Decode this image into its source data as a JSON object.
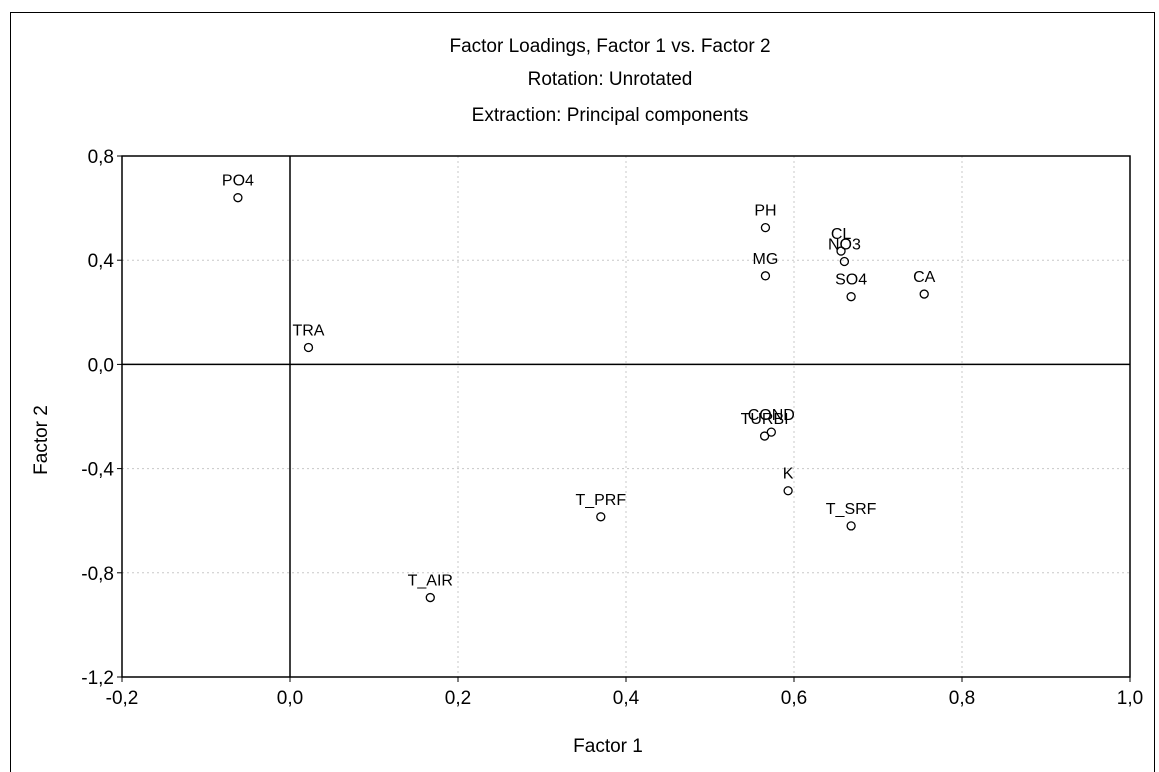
{
  "chart_data": {
    "type": "scatter",
    "title": "Factor Loadings, Factor 1 vs. Factor 2",
    "subtitle_lines": [
      "Rotation: Unrotated",
      "Extraction: Principal components"
    ],
    "xlabel": "Factor 1",
    "ylabel": "Factor 2",
    "xlim": [
      -0.2,
      1.0
    ],
    "ylim": [
      -1.2,
      0.8
    ],
    "xticks": [
      {
        "value": -0.2,
        "label": "-0,2"
      },
      {
        "value": 0.0,
        "label": "0,0"
      },
      {
        "value": 0.2,
        "label": "0,2"
      },
      {
        "value": 0.4,
        "label": "0,4"
      },
      {
        "value": 0.6,
        "label": "0,6"
      },
      {
        "value": 0.8,
        "label": "0,8"
      },
      {
        "value": 1.0,
        "label": "1,0"
      }
    ],
    "yticks": [
      {
        "value": 0.8,
        "label": "0,8"
      },
      {
        "value": 0.4,
        "label": "0,4"
      },
      {
        "value": 0.0,
        "label": "0,0"
      },
      {
        "value": -0.4,
        "label": "-0,4"
      },
      {
        "value": -0.8,
        "label": "-0,8"
      },
      {
        "value": -1.2,
        "label": "-1,2"
      }
    ],
    "grid": true,
    "zero_lines": true,
    "points": [
      {
        "label": "PO4",
        "x": -0.062,
        "y": 0.64
      },
      {
        "label": "TRA",
        "x": 0.022,
        "y": 0.065
      },
      {
        "label": "PH",
        "x": 0.566,
        "y": 0.525
      },
      {
        "label": "MG",
        "x": 0.566,
        "y": 0.34
      },
      {
        "label": "CL",
        "x": 0.656,
        "y": 0.435
      },
      {
        "label": "NO3",
        "x": 0.66,
        "y": 0.395
      },
      {
        "label": "SO4",
        "x": 0.668,
        "y": 0.26
      },
      {
        "label": "CA",
        "x": 0.755,
        "y": 0.27
      },
      {
        "label": "COND",
        "x": 0.573,
        "y": -0.26
      },
      {
        "label": "TURBI",
        "x": 0.565,
        "y": -0.275
      },
      {
        "label": "K",
        "x": 0.593,
        "y": -0.485
      },
      {
        "label": "T_PRF",
        "x": 0.37,
        "y": -0.585
      },
      {
        "label": "T_SRF",
        "x": 0.668,
        "y": -0.62
      },
      {
        "label": "T_AIR",
        "x": 0.167,
        "y": -0.895
      }
    ]
  }
}
